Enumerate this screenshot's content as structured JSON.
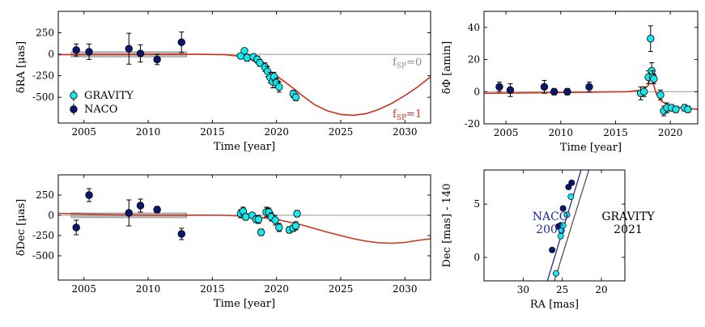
{
  "chart_data": [
    {
      "id": "ra",
      "type": "scatter",
      "xlabel": "Time [year]",
      "ylabel": "δRA [μas]",
      "xlim": [
        2003,
        2032
      ],
      "ylim": [
        -800,
        500
      ],
      "xticks": [
        2005,
        2010,
        2015,
        2020,
        2025,
        2030
      ],
      "yticks": [
        250,
        0,
        -250,
        -500
      ],
      "legend": {
        "position": "lower-left",
        "entries": [
          "GRAVITY",
          "NACO"
        ]
      },
      "annotations": {
        "f0": "f",
        "f0_sub": "SP",
        "f0_val": "=0",
        "f1": "f",
        "f1_sub": "SP",
        "f1_val": "=1"
      },
      "band": {
        "x0": 2004,
        "x1": 2013,
        "y0": -30,
        "y1": 30
      },
      "model_fsp1": {
        "x": [
          2003,
          2005,
          2008,
          2011,
          2014,
          2016,
          2017,
          2018,
          2019,
          2020,
          2021,
          2022,
          2023,
          2024,
          2025,
          2026,
          2027,
          2028,
          2029,
          2030,
          2031,
          2032
        ],
        "y": [
          -5,
          -3,
          -2,
          -1,
          0,
          -5,
          -20,
          -60,
          -150,
          -250,
          -360,
          -480,
          -590,
          -660,
          -700,
          -710,
          -690,
          -640,
          -570,
          -480,
          -380,
          -260
        ]
      },
      "series": [
        {
          "name": "NACO",
          "color": "#0b1670",
          "x": [
            2004.4,
            2005.4,
            2008.5,
            2009.4,
            2010.7,
            2012.6
          ],
          "y": [
            50,
            30,
            65,
            10,
            -60,
            140
          ],
          "err": [
            70,
            90,
            180,
            100,
            60,
            120
          ]
        },
        {
          "name": "GRAVITY",
          "color": "#17e8ee",
          "x": [
            2017.2,
            2017.5,
            2017.7,
            2018.2,
            2018.5,
            2018.7,
            2019.1,
            2019.3,
            2019.5,
            2019.7,
            2019.8,
            2020.0,
            2020.2,
            2021.3,
            2021.5
          ],
          "y": [
            -20,
            40,
            -40,
            -30,
            -60,
            -100,
            -150,
            -200,
            -270,
            -320,
            -260,
            -330,
            -380,
            -460,
            -500
          ],
          "err": [
            30,
            30,
            40,
            30,
            40,
            40,
            50,
            60,
            60,
            70,
            50,
            50,
            60,
            40,
            40
          ]
        }
      ]
    },
    {
      "id": "phi",
      "type": "scatter",
      "xlabel": "Time [year]",
      "ylabel": "δΦ [amin]",
      "xlim": [
        2003,
        2022.5
      ],
      "ylim": [
        -20,
        50
      ],
      "xticks": [
        2005,
        2010,
        2015,
        2020
      ],
      "yticks": [
        40,
        20,
        0,
        -20
      ],
      "model_x": [
        2003,
        2010,
        2016,
        2017.5,
        2018.0,
        2018.2,
        2018.4,
        2018.7,
        2019.2,
        2020,
        2021,
        2022.5
      ],
      "model_y": [
        -1,
        -0.5,
        0,
        1,
        4,
        10,
        6,
        -1,
        -6,
        -9,
        -10,
        -11
      ],
      "series": [
        {
          "name": "NACO",
          "color": "#0b1670",
          "x": [
            2004.4,
            2005.4,
            2008.5,
            2009.4,
            2010.6,
            2012.6
          ],
          "y": [
            3,
            1,
            3,
            0,
            0,
            3
          ],
          "err": [
            3,
            4,
            4,
            2,
            2,
            3
          ]
        },
        {
          "name": "GRAVITY",
          "color": "#17e8ee",
          "x": [
            2017.3,
            2017.6,
            2018.0,
            2018.2,
            2018.3,
            2018.4,
            2018.5,
            2019.1,
            2019.4,
            2019.7,
            2020.1,
            2020.5,
            2021.3,
            2021.6
          ],
          "y": [
            -1,
            0,
            9,
            33,
            13,
            9,
            8,
            -2,
            -12,
            -10,
            -10,
            -11,
            -10,
            -11
          ],
          "err": [
            4,
            3,
            4,
            8,
            5,
            4,
            3,
            3,
            3,
            3,
            2,
            2,
            2,
            2
          ]
        }
      ]
    },
    {
      "id": "dec",
      "type": "scatter",
      "xlabel": "Time [year]",
      "ylabel": "δDec [μas]",
      "xlim": [
        2003,
        2032
      ],
      "ylim": [
        -800,
        500
      ],
      "xticks": [
        2005,
        2010,
        2015,
        2020,
        2025,
        2030
      ],
      "yticks": [
        250,
        0,
        -250,
        -500
      ],
      "band": {
        "x0": 2004,
        "x1": 2013,
        "y0": -30,
        "y1": 30
      },
      "model_fsp1": {
        "x": [
          2003,
          2005,
          2008,
          2011,
          2014,
          2016,
          2018,
          2020,
          2022,
          2024,
          2026,
          2027,
          2028,
          2029,
          2030,
          2031,
          2032
        ],
        "y": [
          25,
          15,
          5,
          0,
          2,
          0,
          -15,
          -50,
          -120,
          -210,
          -290,
          -320,
          -340,
          -345,
          -335,
          -310,
          -290
        ]
      },
      "series": [
        {
          "name": "NACO",
          "color": "#0b1670",
          "x": [
            2004.4,
            2005.4,
            2008.5,
            2009.4,
            2010.7,
            2012.6
          ],
          "y": [
            -150,
            250,
            30,
            120,
            70,
            -230
          ],
          "err": [
            90,
            80,
            160,
            80,
            40,
            70
          ]
        },
        {
          "name": "GRAVITY",
          "color": "#17e8ee",
          "x": [
            2017.2,
            2017.4,
            2017.6,
            2018.1,
            2018.4,
            2018.6,
            2018.8,
            2019.2,
            2019.4,
            2019.6,
            2019.9,
            2020.2,
            2021.0,
            2021.3,
            2021.5,
            2021.6
          ],
          "y": [
            20,
            50,
            -20,
            0,
            -50,
            -50,
            -210,
            40,
            40,
            -20,
            -60,
            -150,
            -180,
            -160,
            -130,
            20
          ],
          "err": [
            50,
            50,
            40,
            30,
            40,
            50,
            40,
            60,
            50,
            50,
            60,
            50,
            40,
            40,
            50,
            40
          ]
        }
      ]
    },
    {
      "id": "sky",
      "type": "scatter",
      "xlabel": "RA [mas]",
      "ylabel": "Dec [mas] - 140",
      "xlim": [
        35,
        17
      ],
      "ylim": [
        -2.2,
        8.2
      ],
      "xticks": [
        30,
        25,
        20
      ],
      "yticks": [
        5,
        0
      ],
      "labels": {
        "naco_l1": "NACO",
        "naco_l2": "2005",
        "grav_l1": "GRAVITY",
        "grav_l2": "2021"
      },
      "lines": [
        {
          "name": "NACO",
          "color": "#2b2b8c",
          "x": [
            26.9,
            22.6
          ],
          "y": [
            -2.2,
            8.2
          ]
        },
        {
          "name": "GRAVITY",
          "color": "#555555",
          "x": [
            26.0,
            21.6
          ],
          "y": [
            -2.2,
            8.2
          ]
        }
      ],
      "series": [
        {
          "name": "NACO",
          "color": "#0b1670",
          "x": [
            26.3,
            25.5,
            25.2,
            24.9,
            24.2,
            23.8
          ],
          "y": [
            0.7,
            2.9,
            3.0,
            4.6,
            6.6,
            7.0
          ]
        },
        {
          "name": "GRAVITY",
          "color": "#17e8ee",
          "x": [
            25.8,
            25.2,
            25.1,
            24.9,
            24.4,
            23.9
          ],
          "y": [
            -1.5,
            2.0,
            2.5,
            3.0,
            4.0,
            5.7
          ]
        }
      ]
    }
  ]
}
